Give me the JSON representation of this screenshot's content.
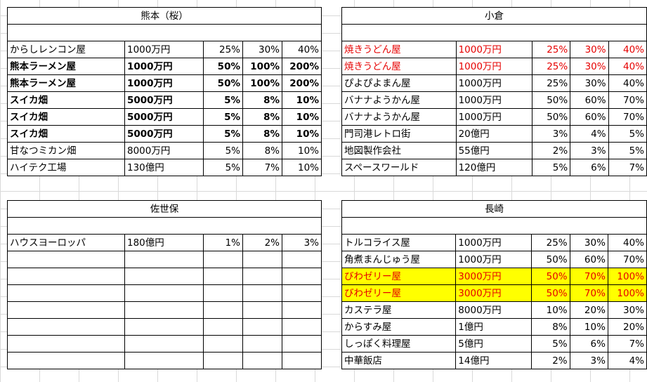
{
  "kumamoto": {
    "title": "熊本（桜）",
    "rows": [
      {
        "name": "からしレンコン屋",
        "price": "1000万円",
        "p1": "25%",
        "p2": "30%",
        "p3": "40%",
        "style": ""
      },
      {
        "name": "熊本ラーメン屋",
        "price": "1000万円",
        "p1": "50%",
        "p2": "100%",
        "p3": "200%",
        "style": "bold"
      },
      {
        "name": "熊本ラーメン屋",
        "price": "1000万円",
        "p1": "50%",
        "p2": "100%",
        "p3": "200%",
        "style": "bold"
      },
      {
        "name": "スイカ畑",
        "price": "5000万円",
        "p1": "5%",
        "p2": "8%",
        "p3": "10%",
        "style": "bold"
      },
      {
        "name": "スイカ畑",
        "price": "5000万円",
        "p1": "5%",
        "p2": "8%",
        "p3": "10%",
        "style": "bold"
      },
      {
        "name": "スイカ畑",
        "price": "5000万円",
        "p1": "5%",
        "p2": "8%",
        "p3": "10%",
        "style": "bold"
      },
      {
        "name": "甘なつミカン畑",
        "price": "8000万円",
        "p1": "5%",
        "p2": "8%",
        "p3": "10%",
        "style": ""
      },
      {
        "name": "ハイテク工場",
        "price": "130億円",
        "p1": "5%",
        "p2": "7%",
        "p3": "10%",
        "style": ""
      }
    ]
  },
  "kokura": {
    "title": "小倉",
    "rows": [
      {
        "name": "焼きうどん屋",
        "price": "1000万円",
        "p1": "25%",
        "p2": "30%",
        "p3": "40%",
        "style": "red"
      },
      {
        "name": "焼きうどん屋",
        "price": "1000万円",
        "p1": "25%",
        "p2": "30%",
        "p3": "40%",
        "style": "red"
      },
      {
        "name": "ぴよぴよまん屋",
        "price": "1000万円",
        "p1": "25%",
        "p2": "30%",
        "p3": "40%",
        "style": ""
      },
      {
        "name": "バナナようかん屋",
        "price": "1000万円",
        "p1": "50%",
        "p2": "60%",
        "p3": "70%",
        "style": ""
      },
      {
        "name": "バナナようかん屋",
        "price": "1000万円",
        "p1": "50%",
        "p2": "60%",
        "p3": "70%",
        "style": ""
      },
      {
        "name": "門司港レトロ街",
        "price": "20億円",
        "p1": "3%",
        "p2": "4%",
        "p3": "5%",
        "style": ""
      },
      {
        "name": "地図製作会社",
        "price": "55億円",
        "p1": "2%",
        "p2": "3%",
        "p3": "5%",
        "style": ""
      },
      {
        "name": "スペースワールド",
        "price": "120億円",
        "p1": "5%",
        "p2": "6%",
        "p3": "7%",
        "style": ""
      }
    ]
  },
  "sasebo": {
    "title": "佐世保",
    "rows": [
      {
        "name": "ハウスヨーロッパ",
        "price": "180億円",
        "p1": "1%",
        "p2": "2%",
        "p3": "3%",
        "style": ""
      },
      {
        "name": "",
        "price": "",
        "p1": "",
        "p2": "",
        "p3": "",
        "style": ""
      },
      {
        "name": "",
        "price": "",
        "p1": "",
        "p2": "",
        "p3": "",
        "style": ""
      },
      {
        "name": "",
        "price": "",
        "p1": "",
        "p2": "",
        "p3": "",
        "style": ""
      },
      {
        "name": "",
        "price": "",
        "p1": "",
        "p2": "",
        "p3": "",
        "style": ""
      },
      {
        "name": "",
        "price": "",
        "p1": "",
        "p2": "",
        "p3": "",
        "style": ""
      },
      {
        "name": "",
        "price": "",
        "p1": "",
        "p2": "",
        "p3": "",
        "style": ""
      },
      {
        "name": "",
        "price": "",
        "p1": "",
        "p2": "",
        "p3": "",
        "style": ""
      }
    ]
  },
  "nagasaki": {
    "title": "長崎",
    "rows": [
      {
        "name": "トルコライス屋",
        "price": "1000万円",
        "p1": "25%",
        "p2": "30%",
        "p3": "40%",
        "style": ""
      },
      {
        "name": "角煮まんじゅう屋",
        "price": "1000万円",
        "p1": "50%",
        "p2": "60%",
        "p3": "70%",
        "style": ""
      },
      {
        "name": "びわゼリー屋",
        "price": "3000万円",
        "p1": "50%",
        "p2": "70%",
        "p3": "100%",
        "style": "red hl"
      },
      {
        "name": "びわゼリー屋",
        "price": "3000万円",
        "p1": "50%",
        "p2": "70%",
        "p3": "100%",
        "style": "red hl"
      },
      {
        "name": "カステラ屋",
        "price": "8000万円",
        "p1": "10%",
        "p2": "20%",
        "p3": "30%",
        "style": ""
      },
      {
        "name": "からすみ屋",
        "price": "1億円",
        "p1": "8%",
        "p2": "10%",
        "p3": "20%",
        "style": ""
      },
      {
        "name": "しっぽく料理屋",
        "price": "5億円",
        "p1": "5%",
        "p2": "6%",
        "p3": "7%",
        "style": ""
      },
      {
        "name": "中華飯店",
        "price": "14億円",
        "p1": "2%",
        "p2": "3%",
        "p3": "4%",
        "style": ""
      }
    ]
  },
  "colors": {
    "red_text": "#e60000",
    "highlight": "#ffff00",
    "grid": "#d9d9d9"
  }
}
